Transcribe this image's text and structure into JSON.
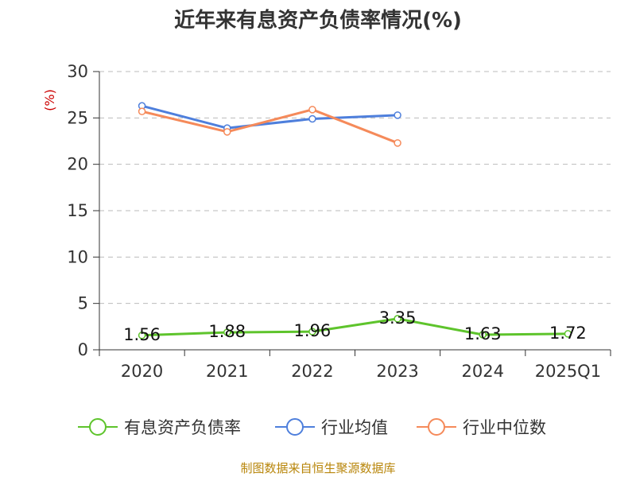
{
  "chart_data": {
    "type": "line",
    "title": "近年来有息资产负债率情况(%)",
    "ylabel": "(%)",
    "xlabel": "",
    "categories": [
      "2020",
      "2021",
      "2022",
      "2023",
      "2024",
      "2025Q1"
    ],
    "ylim": [
      0,
      30
    ],
    "yticks": [
      0,
      5,
      10,
      15,
      20,
      25,
      30
    ],
    "grid": true,
    "legend_position": "bottom",
    "series": [
      {
        "name": "有息资产负债率",
        "color": "#5ec42c",
        "values": [
          1.56,
          1.88,
          1.96,
          3.35,
          1.63,
          1.72
        ],
        "labels": [
          "1.56",
          "1.88",
          "1.96",
          "3.35",
          "1.63",
          "1.72"
        ]
      },
      {
        "name": "行业均值",
        "color": "#4e7fdc",
        "values": [
          26.3,
          23.9,
          24.9,
          25.3,
          null,
          null
        ]
      },
      {
        "name": "行业中位数",
        "color": "#f58a5a",
        "values": [
          25.7,
          23.5,
          25.9,
          22.3,
          null,
          null
        ]
      }
    ]
  },
  "source": "制图数据来自恒生聚源数据库"
}
